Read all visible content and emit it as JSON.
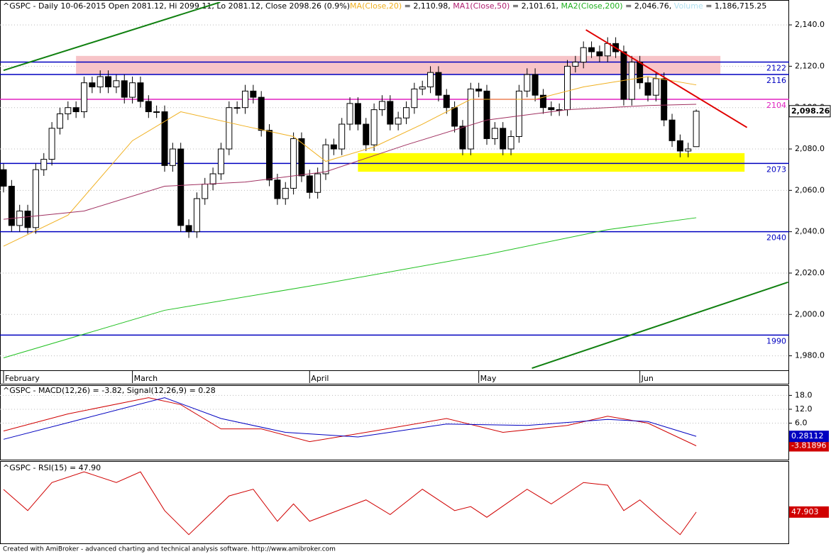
{
  "header": [
    {
      "text": "^GSPC - Daily 10-06-2015 Open 2081.12, Hi 2099.11, Lo 2081.12, Close 2098.26 (0.9%)",
      "color": "#000000"
    },
    {
      "text": "MA(Close,20)",
      "color": "#f0b020"
    },
    {
      "text": " = 2,110.98, ",
      "color": "#000000"
    },
    {
      "text": "MA1(Close,50)",
      "color": "#b02070"
    },
    {
      "text": " = 2,101.61, ",
      "color": "#000000"
    },
    {
      "text": "MA2(Close,200)",
      "color": "#20b020"
    },
    {
      "text": " = 2,046.76, ",
      "color": "#000000"
    },
    {
      "text": "Volume",
      "color": "#b0e0f0"
    },
    {
      "text": " = 1,186,715.25",
      "color": "#000000"
    }
  ],
  "footer": "Created with AmiBroker - advanced charting and technical analysis software. http://www.amibroker.com",
  "chart_data": [
    {
      "type": "candlestick",
      "ylim": [
        1973,
        2151
      ],
      "yticks": [
        {
          "value": 1980,
          "label": "1,980.0"
        },
        {
          "value": 2000,
          "label": "2,000.0"
        },
        {
          "value": 2020,
          "label": "2,020.0"
        },
        {
          "value": 2040,
          "label": "2,040.0"
        },
        {
          "value": 2060,
          "label": "2,060.0"
        },
        {
          "value": 2080,
          "label": "2,080.0"
        },
        {
          "value": 2100,
          "label": "2,100.0"
        },
        {
          "value": 2120,
          "label": "2,120.0"
        },
        {
          "value": 2140,
          "label": "2,140.0"
        }
      ],
      "month_labels": {
        "x": [
          0,
          16,
          38,
          59,
          79
        ],
        "labels": [
          "February",
          "March",
          "April",
          "May",
          "Jun"
        ]
      },
      "open": [
        2070,
        2062,
        2043,
        2050,
        2042,
        2070,
        2075,
        2090,
        2097,
        2100,
        2098,
        2112,
        2110,
        2115,
        2110,
        2113,
        2105,
        2112,
        2103,
        2098,
        2098,
        2072,
        2080,
        2043,
        2040,
        2056,
        2063,
        2068,
        2080,
        2100,
        2100,
        2108,
        2105,
        2089,
        2065,
        2056,
        2061,
        2085,
        2067,
        2059,
        2068,
        2082,
        2080,
        2092,
        2102,
        2092,
        2082,
        2099,
        2103,
        2092,
        2095,
        2100,
        2109,
        2110,
        2117,
        2106,
        2100,
        2091,
        2080,
        2109,
        2108,
        2085,
        2090,
        2080,
        2086,
        2108,
        2116,
        2106,
        2100,
        2099,
        2099,
        2120,
        2122,
        2129,
        2127,
        2125,
        2131,
        2127,
        2104,
        2122,
        2112,
        2106,
        2114,
        2094,
        2084,
        2079,
        2081.12
      ],
      "high": [
        2073,
        2065,
        2053,
        2053,
        2073,
        2078,
        2093,
        2100,
        2103,
        2103,
        2115,
        2115,
        2118,
        2118,
        2116,
        2116,
        2115,
        2115,
        2106,
        2101,
        2101,
        2083,
        2083,
        2046,
        2059,
        2066,
        2071,
        2083,
        2103,
        2103,
        2111,
        2111,
        2108,
        2092,
        2068,
        2064,
        2088,
        2088,
        2070,
        2071,
        2085,
        2085,
        2095,
        2105,
        2105,
        2095,
        2102,
        2106,
        2106,
        2098,
        2103,
        2112,
        2113,
        2120,
        2120,
        2109,
        2103,
        2094,
        2112,
        2112,
        2111,
        2093,
        2093,
        2089,
        2111,
        2119,
        2119,
        2109,
        2103,
        2102,
        2123,
        2125,
        2132,
        2132,
        2130,
        2134,
        2134,
        2130,
        2125,
        2125,
        2115,
        2117,
        2117,
        2097,
        2087,
        2083,
        2099.11
      ],
      "low": [
        2059,
        2040,
        2040,
        2039,
        2039,
        2067,
        2072,
        2087,
        2094,
        2095,
        2095,
        2107,
        2107,
        2107,
        2107,
        2102,
        2102,
        2100,
        2095,
        2095,
        2069,
        2069,
        2040,
        2037,
        2037,
        2053,
        2060,
        2065,
        2077,
        2097,
        2097,
        2102,
        2086,
        2062,
        2053,
        2053,
        2058,
        2064,
        2056,
        2056,
        2065,
        2077,
        2077,
        2089,
        2089,
        2079,
        2079,
        2096,
        2089,
        2089,
        2092,
        2097,
        2106,
        2107,
        2103,
        2097,
        2088,
        2077,
        2077,
        2105,
        2082,
        2082,
        2077,
        2077,
        2083,
        2105,
        2103,
        2097,
        2096,
        2096,
        2096,
        2117,
        2119,
        2124,
        2122,
        2122,
        2124,
        2101,
        2101,
        2109,
        2103,
        2103,
        2091,
        2081,
        2076,
        2076,
        2081.12
      ],
      "close": [
        2062,
        2043,
        2050,
        2042,
        2070,
        2075,
        2090,
        2097,
        2100,
        2098,
        2112,
        2110,
        2115,
        2110,
        2113,
        2105,
        2112,
        2103,
        2098,
        2098,
        2072,
        2080,
        2043,
        2040,
        2056,
        2063,
        2068,
        2080,
        2100,
        2100,
        2108,
        2105,
        2089,
        2065,
        2056,
        2061,
        2085,
        2067,
        2059,
        2068,
        2082,
        2080,
        2092,
        2102,
        2092,
        2082,
        2099,
        2103,
        2092,
        2095,
        2100,
        2109,
        2110,
        2117,
        2106,
        2100,
        2091,
        2080,
        2109,
        2108,
        2085,
        2090,
        2080,
        2086,
        2108,
        2116,
        2106,
        2100,
        2099,
        2099,
        2120,
        2122,
        2129,
        2127,
        2125,
        2131,
        2127,
        2104,
        2122,
        2112,
        2106,
        2114,
        2094,
        2084,
        2079,
        2080,
        2098.26
      ],
      "last_label": "2,098.26",
      "zones": [
        {
          "x": [
            9,
            89
          ],
          "y": [
            2116,
            2125
          ],
          "color": "#f7c4c8"
        },
        {
          "x": [
            44,
            92
          ],
          "y": [
            2069,
            2078
          ],
          "color": "#ffff00"
        }
      ],
      "levels": [
        {
          "value": 2122,
          "color": "#0000c0"
        },
        {
          "value": 2116,
          "color": "#0000c0"
        },
        {
          "value": 2104,
          "color": "#e020c0"
        },
        {
          "value": 2073,
          "color": "#0000c0"
        },
        {
          "value": 2040,
          "color": "#0000c0"
        },
        {
          "value": 1990,
          "color": "#0000c0"
        }
      ],
      "series": [
        {
          "name": "MA(Close,20)",
          "color": "#f0b020",
          "x": [
            0,
            8,
            16,
            22,
            30,
            36,
            40,
            46,
            52,
            58,
            66,
            72,
            80,
            86
          ],
          "values": [
            2033,
            2048,
            2084,
            2098,
            2091,
            2086,
            2074,
            2081,
            2092,
            2104,
            2104,
            2110,
            2115,
            2110.98
          ]
        },
        {
          "name": "MA1(Close,50)",
          "color": "#a03060",
          "x": [
            0,
            10,
            20,
            30,
            40,
            50,
            60,
            70,
            80,
            86
          ],
          "values": [
            2046,
            2050,
            2062,
            2064,
            2069,
            2082,
            2094,
            2099,
            2101,
            2101.61
          ]
        },
        {
          "name": "MA2(Close,200)",
          "color": "#20c020",
          "x": [
            0,
            20,
            40,
            60,
            75,
            86
          ],
          "values": [
            1979,
            2002,
            2015,
            2029,
            2041,
            2046.76
          ]
        },
        {
          "color": "#108010",
          "x": [
            0,
            26.9
          ],
          "values": [
            2118,
            2151
          ]
        },
        {
          "color": "#108010",
          "x": [
            65.6,
            97.4
          ],
          "values": [
            1974,
            2015.6
          ]
        },
        {
          "color": "#e00000",
          "x": [
            72.3,
            92.3
          ],
          "values": [
            2137.6,
            2090.4
          ]
        }
      ]
    },
    {
      "type": "line",
      "title": "^GSPC - MACD(12,26) = -3.82, Signal(12,26,9) = 0.28",
      "ylim": [
        -9.8,
        21.8
      ],
      "yticks": [
        {
          "value": 6,
          "label": "6.0"
        },
        {
          "value": 12,
          "label": "12.0"
        },
        {
          "value": 18,
          "label": "18.0"
        }
      ],
      "series": [
        {
          "name": "MACD(12,26)",
          "color": "#d00000",
          "x": [
            0,
            8,
            18,
            22,
            27,
            32,
            38,
            46,
            55,
            62,
            70,
            75,
            80,
            86
          ],
          "values": [
            2.6,
            10,
            17,
            14,
            3.5,
            3.5,
            -2,
            2.6,
            8,
            2,
            5,
            9,
            6,
            -3.82
          ],
          "value_label": "-3.81896"
        },
        {
          "name": "Signal(12,26,9)",
          "color": "#0000c0",
          "x": [
            0,
            10,
            20,
            27,
            35,
            44,
            55,
            65,
            75,
            80,
            86
          ],
          "values": [
            -1,
            8,
            17,
            8,
            2,
            0,
            5.6,
            5,
            7.6,
            6.7,
            0.28
          ],
          "value_label": "0.28112"
        }
      ]
    },
    {
      "type": "line",
      "title": "^GSPC - RSI(15) = 47.90",
      "ylim": [
        25,
        85
      ],
      "series": [
        {
          "name": "RSI(15)",
          "color": "#d00000",
          "x": [
            0,
            3,
            6,
            10,
            14,
            17,
            20,
            23,
            28,
            31,
            34,
            36,
            38,
            45,
            48,
            52,
            56,
            58,
            60,
            65,
            68,
            72,
            75,
            77,
            79,
            82,
            84,
            86
          ],
          "values": [
            64.8,
            49,
            70,
            78,
            70,
            78,
            49,
            31,
            60,
            65,
            41,
            54,
            41,
            57,
            46,
            65,
            49,
            52,
            44,
            65,
            54,
            70,
            68,
            49,
            57,
            41,
            31,
            47.9
          ],
          "value_label": "47.903"
        }
      ]
    }
  ]
}
